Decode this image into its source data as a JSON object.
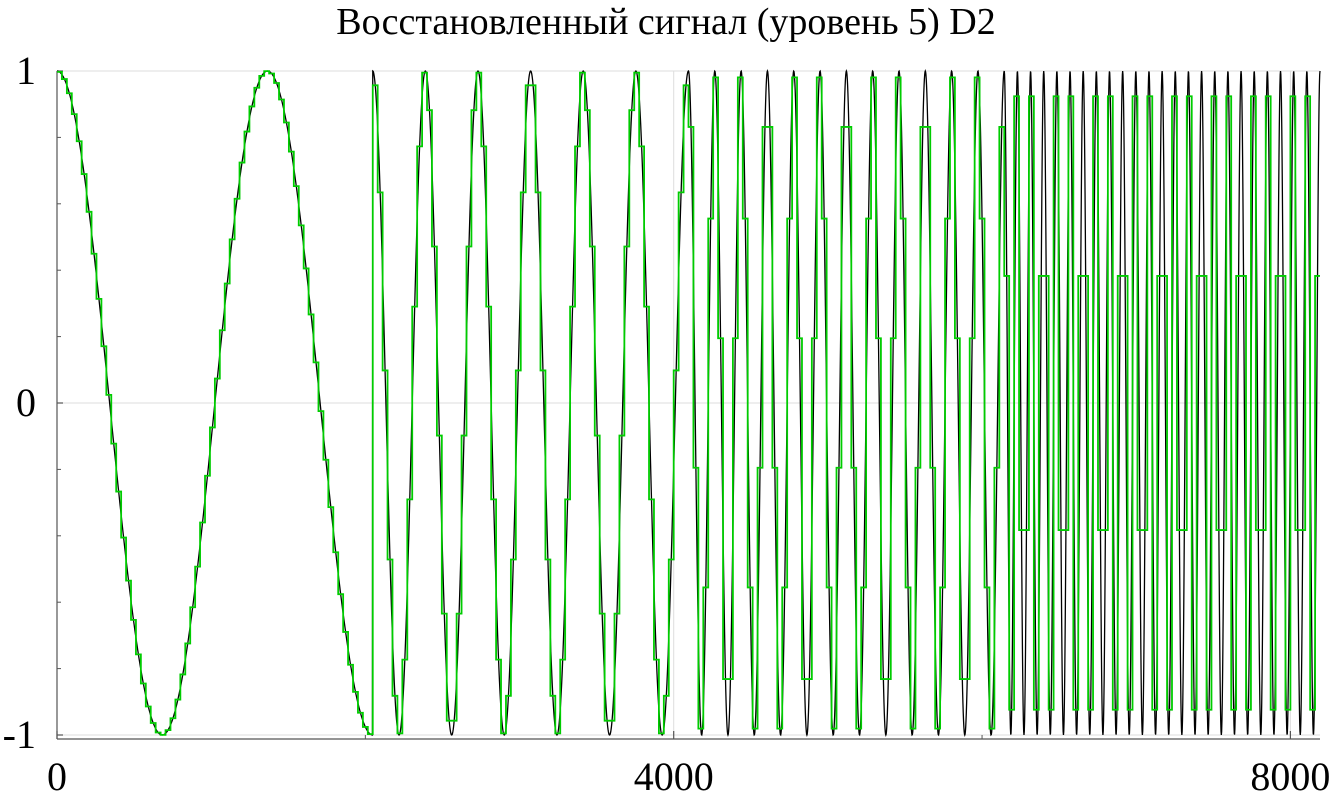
{
  "chart_data": {
    "type": "line",
    "title": "Восстановленный сигнал (уровень 5) D2",
    "xlabel": "",
    "ylabel": "",
    "xlim": [
      0,
      8192
    ],
    "ylim": [
      -1,
      1
    ],
    "grid": true,
    "x_ticks": [
      {
        "value": 0,
        "label": "0"
      },
      {
        "value": 4000,
        "label": "4000"
      },
      {
        "value": 8000,
        "label": "8000"
      }
    ],
    "y_ticks": [
      {
        "value": 1,
        "label": "1"
      },
      {
        "value": 0,
        "label": "0"
      },
      {
        "value": -1,
        "label": "-1"
      }
    ],
    "x_minor_ticks": [
      2000,
      6000
    ],
    "y_minor_ticks": [
      -0.8,
      -0.6,
      -0.4,
      -0.2,
      0.2,
      0.4,
      0.6,
      0.8
    ],
    "series": [
      {
        "color": "#000000",
        "style": "smooth",
        "segments": [
          {
            "x_start": 0,
            "x_end": 2048,
            "periods": 1.5
          },
          {
            "x_start": 2048,
            "x_end": 4096,
            "periods": 6.0
          },
          {
            "x_start": 4096,
            "x_end": 6144,
            "periods": 12.0
          },
          {
            "x_start": 6144,
            "x_end": 8192,
            "periods": 24.0
          }
        ]
      },
      {
        "color": "#00cc00",
        "style": "step",
        "step_size": 32,
        "segments": [
          {
            "x_start": 0,
            "x_end": 2048,
            "periods": 1.5
          },
          {
            "x_start": 2048,
            "x_end": 4096,
            "periods": 6.0
          },
          {
            "x_start": 4096,
            "x_end": 6144,
            "periods": 12.0
          },
          {
            "x_start": 6144,
            "x_end": 8192,
            "periods": 24.0
          }
        ]
      }
    ]
  }
}
